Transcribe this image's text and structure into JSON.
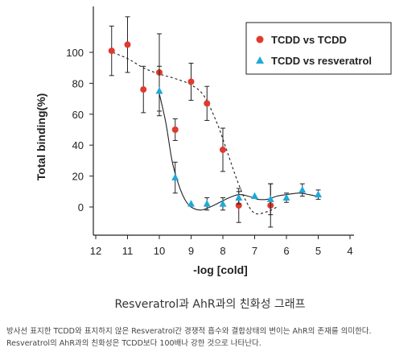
{
  "chart_data": {
    "type": "scatter",
    "title": "",
    "xlabel": "-log [cold]",
    "ylabel": "Total binding(%)",
    "xlim": [
      12,
      4
    ],
    "ylim": [
      -18,
      120
    ],
    "x_ticks": [
      "12",
      "11",
      "10",
      "9",
      "8",
      "7",
      "6",
      "5",
      "4"
    ],
    "x_tick_values": [
      12,
      11,
      10,
      9,
      8,
      7,
      6,
      5,
      4
    ],
    "y_ticks": [
      "0",
      "20",
      "40",
      "60",
      "80",
      "100"
    ],
    "y_tick_values": [
      0,
      20,
      40,
      60,
      80,
      100
    ],
    "legend_position": "top-right",
    "series": [
      {
        "name": "TCDD vs TCDD",
        "marker": "circle",
        "color": "#e03a2f",
        "fit_line": "dashed",
        "points": [
          {
            "x": 11.5,
            "y": 101,
            "err": 16
          },
          {
            "x": 11.0,
            "y": 105,
            "err": 18
          },
          {
            "x": 10.5,
            "y": 76,
            "err": 15
          },
          {
            "x": 10.0,
            "y": 87,
            "err": 25
          },
          {
            "x": 9.5,
            "y": 50,
            "err": 7
          },
          {
            "x": 9.0,
            "y": 81,
            "err": 12
          },
          {
            "x": 8.5,
            "y": 67,
            "err": 11
          },
          {
            "x": 8.0,
            "y": 37,
            "err": 14
          },
          {
            "x": 7.5,
            "y": 1,
            "err": 11
          },
          {
            "x": 6.5,
            "y": 1,
            "err": 14
          }
        ]
      },
      {
        "name": "TCDD vs resveratrol",
        "marker": "triangle",
        "color": "#1fa9d9",
        "fit_line": "solid",
        "points": [
          {
            "x": 10.0,
            "y": 75,
            "err": 16
          },
          {
            "x": 9.5,
            "y": 19,
            "err": 10
          },
          {
            "x": 9.0,
            "y": 2,
            "err": 0
          },
          {
            "x": 8.5,
            "y": 2,
            "err": 4
          },
          {
            "x": 8.0,
            "y": 2,
            "err": 4
          },
          {
            "x": 7.5,
            "y": 6,
            "err": 4
          },
          {
            "x": 7.0,
            "y": 7,
            "err": 0
          },
          {
            "x": 6.5,
            "y": 5,
            "err": 10
          },
          {
            "x": 6.0,
            "y": 6,
            "err": 3
          },
          {
            "x": 5.5,
            "y": 11,
            "err": 4
          },
          {
            "x": 5.0,
            "y": 8,
            "err": 3
          }
        ]
      }
    ],
    "fit_curves": [
      {
        "series": "TCDD vs TCDD",
        "points": [
          [
            11.6,
            101
          ],
          [
            11.0,
            96
          ],
          [
            10.5,
            90
          ],
          [
            10.0,
            86
          ],
          [
            9.5,
            83
          ],
          [
            9.0,
            79
          ],
          [
            8.6,
            72
          ],
          [
            8.2,
            55
          ],
          [
            7.9,
            38
          ],
          [
            7.6,
            20
          ],
          [
            7.3,
            5
          ],
          [
            7.0,
            -4
          ],
          [
            6.6,
            -3
          ],
          [
            6.3,
            0
          ]
        ]
      },
      {
        "series": "TCDD vs resveratrol",
        "points": [
          [
            10.02,
            75
          ],
          [
            9.8,
            55
          ],
          [
            9.6,
            30
          ],
          [
            9.4,
            15
          ],
          [
            9.2,
            5
          ],
          [
            9.0,
            0
          ],
          [
            8.7,
            -2
          ],
          [
            8.4,
            0
          ],
          [
            8.1,
            3
          ],
          [
            7.8,
            6
          ],
          [
            7.5,
            8
          ],
          [
            7.2,
            7
          ],
          [
            6.9,
            5
          ],
          [
            6.6,
            5
          ],
          [
            6.3,
            7
          ],
          [
            6.0,
            8
          ],
          [
            5.6,
            9
          ],
          [
            5.3,
            8
          ],
          [
            5.05,
            7
          ]
        ]
      }
    ]
  },
  "caption": {
    "title": "Resveratrol과 AhR과의 친화성 그래프",
    "line1": "방사선 표지한 TCDD와 표지하지 않은 Resveratrol간 경쟁적 흡수와 결합상태의 변이는 AhR의 존재를 의미한다.",
    "line2": "Resveratrol의 AhR과의 친화성은 TCDD보다 100배나 강한 것으로 나타난다."
  }
}
